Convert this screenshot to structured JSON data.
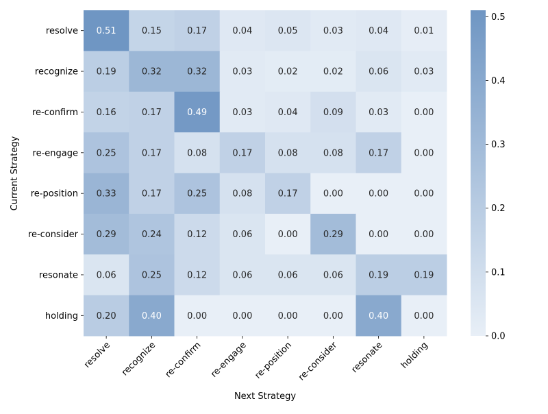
{
  "chart_data": {
    "type": "heatmap",
    "title": "",
    "xlabel": "Next Strategy",
    "ylabel": "Current Strategy",
    "x_categories": [
      "resolve",
      "recognize",
      "re-confirm",
      "re-engage",
      "re-position",
      "re-consider",
      "resonate",
      "holding"
    ],
    "y_categories": [
      "resolve",
      "recognize",
      "re-confirm",
      "re-engage",
      "re-position",
      "re-consider",
      "resonate",
      "holding"
    ],
    "values": [
      [
        0.51,
        0.15,
        0.17,
        0.04,
        0.05,
        0.03,
        0.04,
        0.01
      ],
      [
        0.19,
        0.32,
        0.32,
        0.03,
        0.02,
        0.02,
        0.06,
        0.03
      ],
      [
        0.16,
        0.17,
        0.49,
        0.03,
        0.04,
        0.09,
        0.03,
        0.0
      ],
      [
        0.25,
        0.17,
        0.08,
        0.17,
        0.08,
        0.08,
        0.17,
        0.0
      ],
      [
        0.33,
        0.17,
        0.25,
        0.08,
        0.17,
        0.0,
        0.0,
        0.0
      ],
      [
        0.29,
        0.24,
        0.12,
        0.06,
        0.0,
        0.29,
        0.0,
        0.0
      ],
      [
        0.06,
        0.25,
        0.12,
        0.06,
        0.06,
        0.06,
        0.19,
        0.19
      ],
      [
        0.2,
        0.4,
        0.0,
        0.0,
        0.0,
        0.0,
        0.4,
        0.0
      ]
    ],
    "value_format": "0.00",
    "colorbar": {
      "range": [
        0.0,
        0.51
      ],
      "ticks": [
        "0.0",
        "0.1",
        "0.2",
        "0.3",
        "0.4",
        "0.5"
      ],
      "color_low": "#e8eff7",
      "color_high": "#6f96c3"
    },
    "annotation_colors": {
      "dark": "#262626",
      "light": "#ffffff"
    }
  }
}
